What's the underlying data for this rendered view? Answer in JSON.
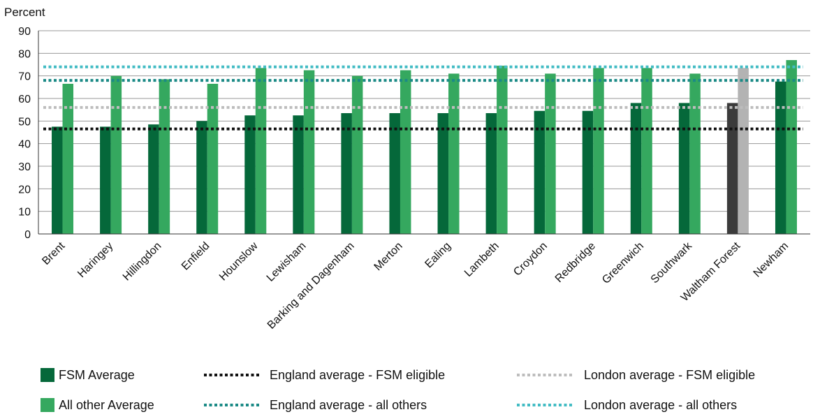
{
  "chart_data": {
    "type": "bar",
    "ylabel": "Percent",
    "ylim": [
      0,
      90
    ],
    "yticks": [
      0,
      10,
      20,
      30,
      40,
      50,
      60,
      70,
      80,
      90
    ],
    "grid": true,
    "legend_position": "bottom",
    "categories": [
      "Brent",
      "Haringey",
      "Hillingdon",
      "Enfield",
      "Hounslow",
      "Lewisham",
      "Barking and Dagenham",
      "Merton",
      "Ealing",
      "Lambeth",
      "Croydon",
      "Redbridge",
      "Greenwich",
      "Southwark",
      "Waltham Forest",
      "Newham"
    ],
    "series": [
      {
        "name": "FSM Average",
        "color": "#05683a",
        "highlight_color": "#3b3b3b",
        "values": [
          47.5,
          47.5,
          48.5,
          50,
          52.5,
          52.5,
          53.5,
          53.5,
          53.5,
          53.5,
          54.5,
          54.5,
          58,
          58,
          58,
          67.5
        ]
      },
      {
        "name": "All other Average",
        "color": "#35a85f",
        "highlight_color": "#b3b3b3",
        "values": [
          66.5,
          70,
          68.5,
          66.5,
          73.5,
          72.5,
          70,
          72.5,
          71,
          74.5,
          71,
          73.5,
          73.5,
          71,
          73.5,
          77
        ]
      }
    ],
    "highlight_category": "Waltham Forest",
    "reference_lines": [
      {
        "name": "England average - FSM eligible",
        "value": 46.5,
        "color": "#111111"
      },
      {
        "name": "London average - FSM eligible",
        "value": 56,
        "color": "#bdbdbd"
      },
      {
        "name": "England average - all others",
        "value": 68,
        "color": "#1b8a86"
      },
      {
        "name": "London average - all others",
        "value": 74,
        "color": "#43bcc4"
      }
    ],
    "legend": [
      {
        "label": "FSM Average",
        "kind": "box",
        "color": "#05683a"
      },
      {
        "label": "England average - FSM eligible",
        "kind": "dash",
        "color": "#111111"
      },
      {
        "label": "London average - FSM eligible",
        "kind": "dash",
        "color": "#bdbdbd"
      },
      {
        "label": "All other Average",
        "kind": "box",
        "color": "#35a85f"
      },
      {
        "label": "England average - all others",
        "kind": "dash",
        "color": "#1b8a86"
      },
      {
        "label": "London average - all others",
        "kind": "dash",
        "color": "#43bcc4"
      }
    ]
  }
}
